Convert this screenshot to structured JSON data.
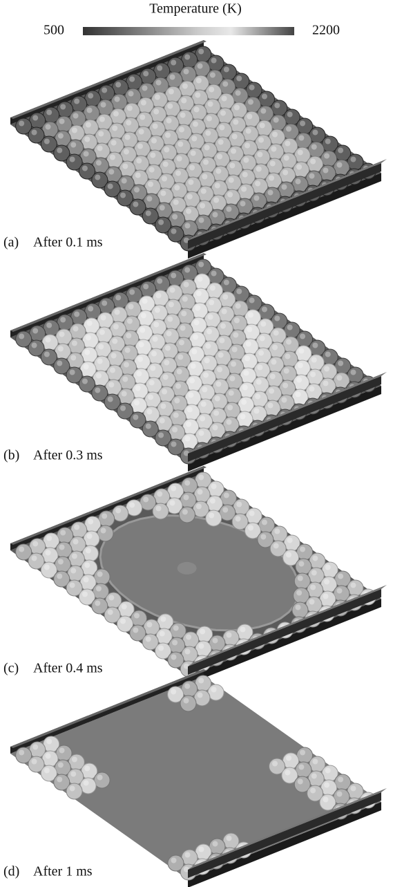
{
  "colorbar": {
    "label": "Temperature (K)",
    "min": 500,
    "max": 2200
  },
  "panels": [
    {
      "label": "(a)",
      "caption": "After 0.1 ms"
    },
    {
      "label": "(b)",
      "caption": "After 0.3 ms"
    },
    {
      "label": "(c)",
      "caption": "After 0.4 ms"
    },
    {
      "label": "(d)",
      "caption": "After 1 ms"
    }
  ]
}
